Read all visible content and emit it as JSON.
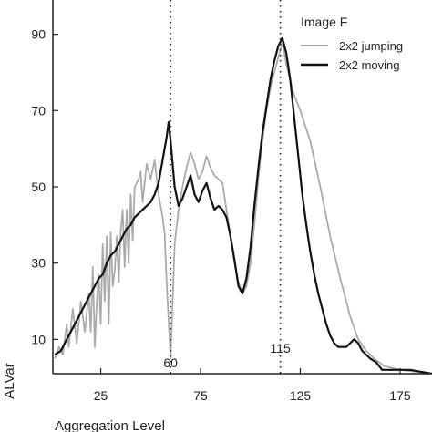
{
  "chart_data": {
    "type": "line",
    "title": "",
    "xlabel": "Aggregation Level",
    "ylabel": "ALVar",
    "xlim": [
      1,
      191
    ],
    "ylim": [
      1,
      99
    ],
    "xticks": [
      25,
      75,
      125,
      175
    ],
    "yticks": [
      10,
      30,
      50,
      70,
      90
    ],
    "legend": {
      "title": "Image F",
      "placement": "top-right"
    },
    "series": [
      {
        "name": "2x2 jumping",
        "color": "#aaaaaa",
        "points": [
          [
            2,
            5
          ],
          [
            4,
            8
          ],
          [
            6,
            6
          ],
          [
            8,
            14
          ],
          [
            9,
            8
          ],
          [
            11,
            18
          ],
          [
            13,
            9
          ],
          [
            15,
            20
          ],
          [
            17,
            12
          ],
          [
            19,
            22
          ],
          [
            20,
            12
          ],
          [
            21,
            29
          ],
          [
            22,
            8
          ],
          [
            23,
            20
          ],
          [
            24,
            27
          ],
          [
            25,
            14
          ],
          [
            26,
            35
          ],
          [
            27,
            20
          ],
          [
            28,
            37
          ],
          [
            29,
            14
          ],
          [
            30,
            38
          ],
          [
            31,
            24
          ],
          [
            32,
            28
          ],
          [
            33,
            37
          ],
          [
            34,
            25
          ],
          [
            35,
            38
          ],
          [
            36,
            44
          ],
          [
            37,
            29
          ],
          [
            38,
            44
          ],
          [
            39,
            30
          ],
          [
            40,
            48
          ],
          [
            41,
            36
          ],
          [
            42,
            50
          ],
          [
            44,
            52
          ],
          [
            45,
            54
          ],
          [
            46,
            46
          ],
          [
            48,
            56
          ],
          [
            50,
            52
          ],
          [
            52,
            57
          ],
          [
            54,
            48
          ],
          [
            56,
            42
          ],
          [
            57,
            38
          ],
          [
            58,
            25
          ],
          [
            59,
            15
          ],
          [
            60,
            5
          ],
          [
            61,
            20
          ],
          [
            62,
            35
          ],
          [
            64,
            44
          ],
          [
            66,
            50
          ],
          [
            68,
            55
          ],
          [
            70,
            59
          ],
          [
            72,
            56
          ],
          [
            74,
            52
          ],
          [
            76,
            54
          ],
          [
            78,
            58
          ],
          [
            80,
            55
          ],
          [
            82,
            53
          ],
          [
            84,
            52
          ],
          [
            86,
            51
          ],
          [
            88,
            44
          ],
          [
            90,
            37
          ],
          [
            92,
            30
          ],
          [
            94,
            25
          ],
          [
            96,
            22
          ],
          [
            98,
            24
          ],
          [
            100,
            30
          ],
          [
            102,
            40
          ],
          [
            104,
            52
          ],
          [
            106,
            62
          ],
          [
            108,
            70
          ],
          [
            110,
            76
          ],
          [
            112,
            80
          ],
          [
            114,
            84
          ],
          [
            116,
            88
          ],
          [
            118,
            82
          ],
          [
            120,
            78
          ],
          [
            122,
            74
          ],
          [
            125,
            70
          ],
          [
            130,
            62
          ],
          [
            135,
            50
          ],
          [
            140,
            37
          ],
          [
            145,
            26
          ],
          [
            148,
            20
          ],
          [
            150,
            16
          ],
          [
            154,
            10
          ],
          [
            158,
            7
          ],
          [
            162,
            5
          ],
          [
            167,
            3
          ],
          [
            175,
            2
          ],
          [
            191,
            1
          ]
        ]
      },
      {
        "name": "2x2 moving",
        "color": "#111111",
        "points": [
          [
            2,
            6
          ],
          [
            5,
            7
          ],
          [
            8,
            10
          ],
          [
            11,
            13
          ],
          [
            14,
            16
          ],
          [
            17,
            19
          ],
          [
            20,
            22
          ],
          [
            22,
            24
          ],
          [
            24,
            26
          ],
          [
            26,
            27
          ],
          [
            28,
            30
          ],
          [
            30,
            32
          ],
          [
            32,
            33
          ],
          [
            34,
            35
          ],
          [
            36,
            37
          ],
          [
            38,
            39
          ],
          [
            40,
            40
          ],
          [
            42,
            42
          ],
          [
            44,
            43
          ],
          [
            46,
            44
          ],
          [
            48,
            45
          ],
          [
            50,
            46
          ],
          [
            52,
            48
          ],
          [
            54,
            51
          ],
          [
            56,
            57
          ],
          [
            58,
            63
          ],
          [
            59,
            67
          ],
          [
            60,
            62
          ],
          [
            61,
            56
          ],
          [
            62,
            50
          ],
          [
            64,
            45
          ],
          [
            66,
            47
          ],
          [
            68,
            50
          ],
          [
            70,
            53
          ],
          [
            72,
            48
          ],
          [
            74,
            46
          ],
          [
            76,
            49
          ],
          [
            78,
            51
          ],
          [
            80,
            47
          ],
          [
            82,
            44
          ],
          [
            84,
            45
          ],
          [
            86,
            44
          ],
          [
            88,
            42
          ],
          [
            90,
            37
          ],
          [
            92,
            31
          ],
          [
            94,
            24
          ],
          [
            96,
            22
          ],
          [
            98,
            26
          ],
          [
            100,
            34
          ],
          [
            102,
            45
          ],
          [
            104,
            55
          ],
          [
            106,
            64
          ],
          [
            108,
            71
          ],
          [
            110,
            78
          ],
          [
            112,
            83
          ],
          [
            114,
            87
          ],
          [
            116,
            89
          ],
          [
            118,
            85
          ],
          [
            120,
            78
          ],
          [
            122,
            68
          ],
          [
            124,
            58
          ],
          [
            126,
            48
          ],
          [
            128,
            40
          ],
          [
            130,
            33
          ],
          [
            132,
            27
          ],
          [
            134,
            22
          ],
          [
            136,
            18
          ],
          [
            138,
            14
          ],
          [
            140,
            11
          ],
          [
            142,
            9
          ],
          [
            144,
            8
          ],
          [
            146,
            8
          ],
          [
            148,
            8
          ],
          [
            150,
            9
          ],
          [
            152,
            10
          ],
          [
            154,
            9
          ],
          [
            156,
            7
          ],
          [
            158,
            6
          ],
          [
            160,
            5
          ],
          [
            163,
            4
          ],
          [
            166,
            2
          ],
          [
            170,
            2
          ],
          [
            180,
            2
          ],
          [
            191,
            1
          ]
        ]
      }
    ],
    "annotations": [
      {
        "x": 60,
        "label": "60"
      },
      {
        "x": 115,
        "label": "115"
      }
    ],
    "grid": false
  }
}
